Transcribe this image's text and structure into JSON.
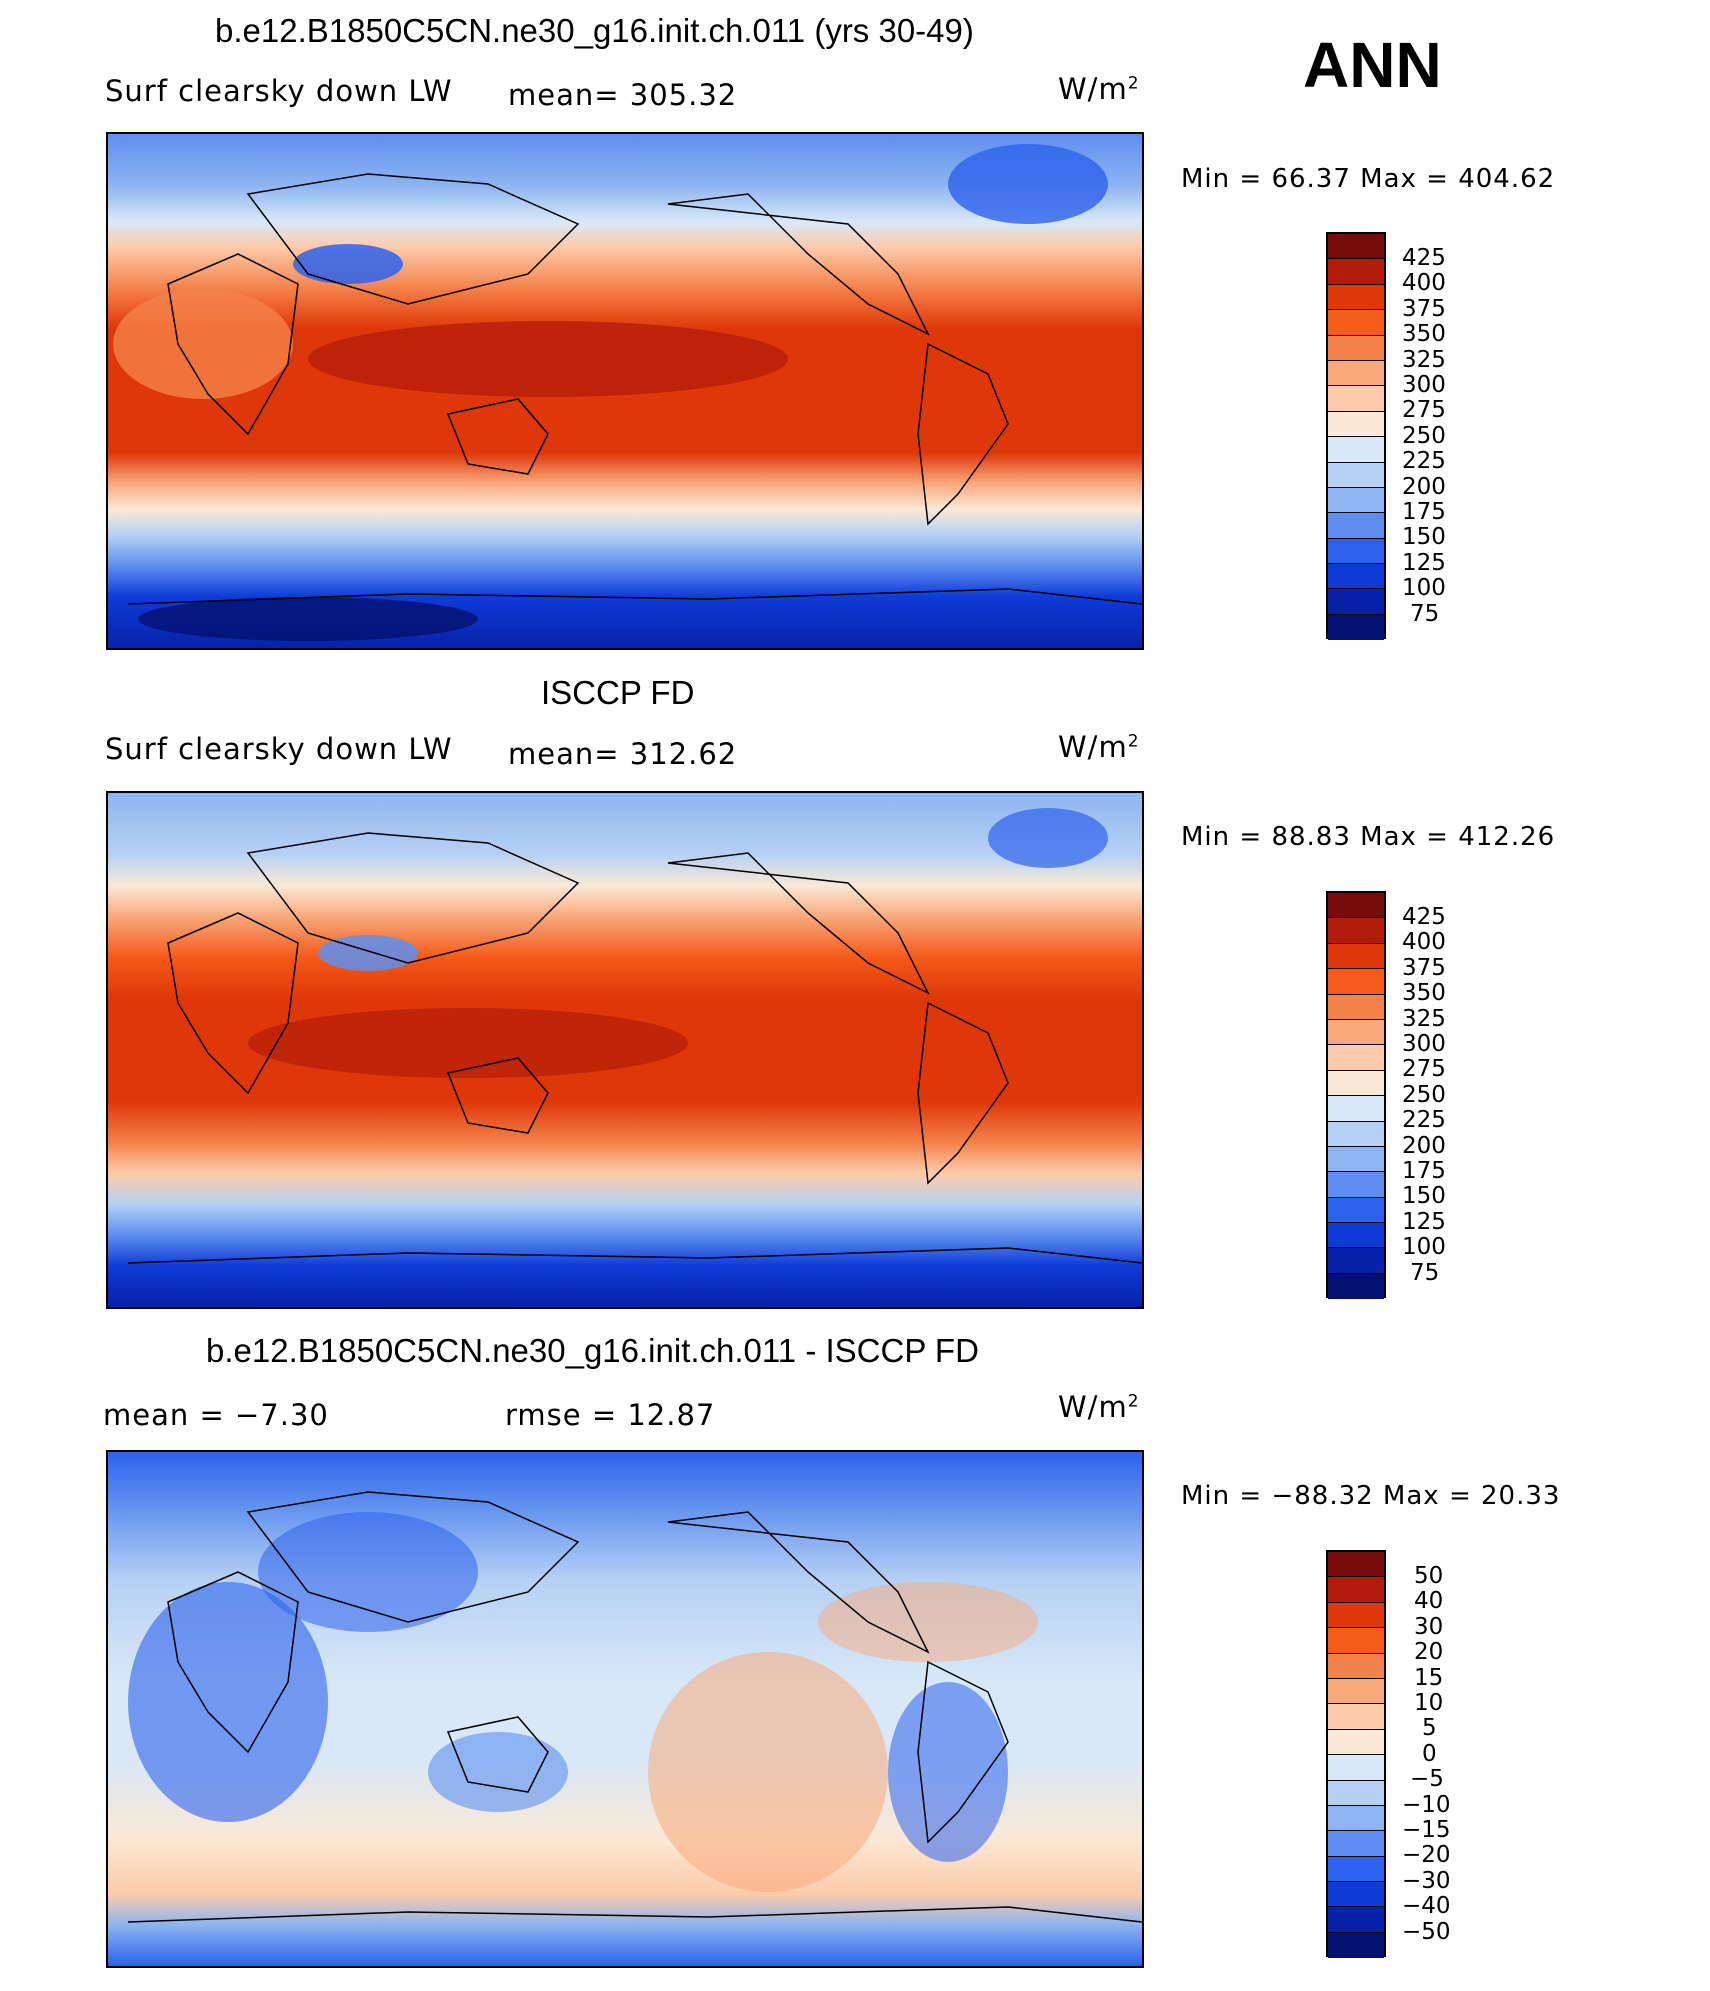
{
  "header": {
    "ann_label": "ANN"
  },
  "panels": [
    {
      "title": "b.e12.B1850C5CN.ne30_g16.init.ch.011 (yrs 30-49)",
      "variable": "Surf clearsky down LW",
      "stat1": "mean=  305.32",
      "stat2": "",
      "units": "W/m",
      "units_sup": "2",
      "minmax": "Min  =    66.37  Max  =  404.62",
      "colorbar_labels": [
        "425",
        "400",
        "375",
        "350",
        "325",
        "300",
        "275",
        "250",
        "225",
        "200",
        "175",
        "150",
        "125",
        "100",
        "75"
      ]
    },
    {
      "title": "ISCCP FD",
      "variable": "Surf clearsky down LW",
      "stat1": "mean=  312.62",
      "stat2": "",
      "units": "W/m",
      "units_sup": "2",
      "minmax": "Min  =    88.83  Max  =  412.26",
      "colorbar_labels": [
        "425",
        "400",
        "375",
        "350",
        "325",
        "300",
        "275",
        "250",
        "225",
        "200",
        "175",
        "150",
        "125",
        "100",
        "75"
      ]
    },
    {
      "title": "b.e12.B1850C5CN.ne30_g16.init.ch.011 - ISCCP FD",
      "variable": "",
      "stat1": "mean  =    −7.30",
      "stat2": "rmse  =    12.87",
      "units": "W/m",
      "units_sup": "2",
      "minmax": "Min  =  −88.32  Max  =    20.33",
      "colorbar_labels": [
        "50",
        "40",
        "30",
        "20",
        "15",
        "10",
        "5",
        "0",
        "−5",
        "−10",
        "−15",
        "−20",
        "−30",
        "−40",
        "−50"
      ]
    }
  ],
  "colors": {
    "palette": [
      "#7a0b0b",
      "#b31c0a",
      "#de3709",
      "#f55a1a",
      "#f5824a",
      "#f9a97c",
      "#fdcbaa",
      "#fbe9d6",
      "#d8e8f8",
      "#b6d1f4",
      "#8db4f1",
      "#5e8ff0",
      "#2d62ec",
      "#0e3bd8",
      "#0722a8",
      "#041170"
    ]
  }
}
